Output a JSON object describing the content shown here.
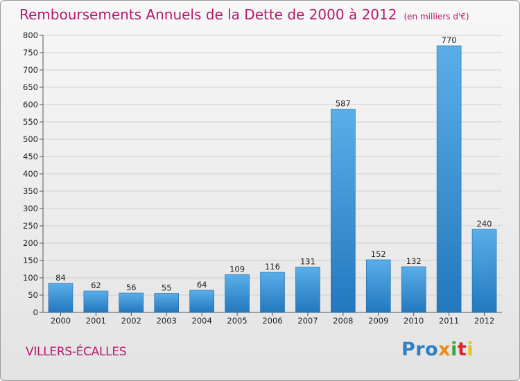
{
  "header": {
    "title": "Remboursements Annuels de la Dette de 2000 à 2012",
    "subtitle": "(en milliers d'€)"
  },
  "footer": {
    "commune": "VILLERS-ÉCALLES",
    "logo": [
      "Pro",
      "x",
      "i",
      "t",
      "i"
    ]
  },
  "colors": {
    "title": "#b5196b",
    "bar_top": "#5aaee8",
    "bar_bottom": "#2378be"
  },
  "chart_data": {
    "type": "bar",
    "title": "Remboursements Annuels de la Dette de 2000 à 2012",
    "subtitle": "(en milliers d'€)",
    "categories": [
      "2000",
      "2001",
      "2002",
      "2003",
      "2004",
      "2005",
      "2006",
      "2007",
      "2008",
      "2009",
      "2010",
      "2011",
      "2012"
    ],
    "values": [
      84,
      62,
      56,
      55,
      64,
      109,
      116,
      131,
      587,
      152,
      132,
      770,
      240
    ],
    "ylim": [
      0,
      800
    ],
    "yticks": [
      0,
      50,
      100,
      150,
      200,
      250,
      300,
      350,
      400,
      450,
      500,
      550,
      600,
      650,
      700,
      750,
      800
    ],
    "grid": true,
    "legend": "none"
  }
}
